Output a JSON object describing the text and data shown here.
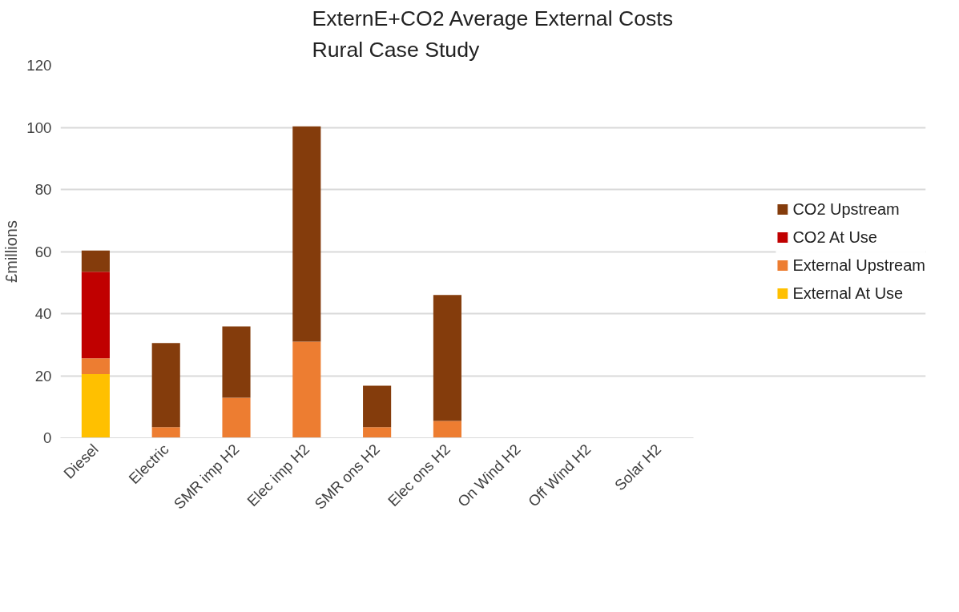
{
  "chart_data": {
    "type": "bar",
    "title": "ExternE+CO2 Average External Costs\nRural Case Study",
    "ylabel": "£millions",
    "categories": [
      "Diesel",
      "Electric",
      "SMR imp H2",
      "Elec imp H2",
      "SMR ons H2",
      "Elec ons H2",
      "On Wind H2",
      "Off Wind H2",
      "Solar H2"
    ],
    "stacked": true,
    "ylim": [
      0,
      120
    ],
    "yticks": [
      0,
      20,
      40,
      60,
      80,
      100,
      120
    ],
    "grid": "y",
    "legend": "right",
    "series": [
      {
        "name": "External At Use",
        "color": "#ffc000",
        "values": [
          20.5,
          null,
          null,
          null,
          null,
          null,
          null,
          null,
          null
        ]
      },
      {
        "name": "External Upstream",
        "color": "#ed7d31",
        "values": [
          5.1,
          3.4,
          12.9,
          31.0,
          3.4,
          5.4,
          null,
          null,
          null
        ]
      },
      {
        "name": "CO2 At Use",
        "color": "#c00000",
        "values": [
          27.9,
          null,
          null,
          null,
          null,
          null,
          null,
          null,
          null
        ]
      },
      {
        "name": "CO2 Upstream",
        "color": "#843c0c",
        "values": [
          6.8,
          27.1,
          23.0,
          69.3,
          13.4,
          40.6,
          null,
          null,
          null
        ]
      }
    ]
  }
}
